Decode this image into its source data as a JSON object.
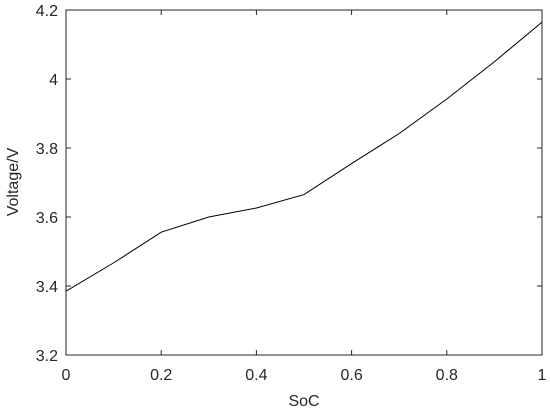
{
  "chart_data": {
    "type": "line",
    "x_label": "SoC",
    "y_label": "Voltage/V",
    "x": [
      0,
      0.1,
      0.2,
      0.3,
      0.4,
      0.5,
      0.6,
      0.7,
      0.8,
      0.9,
      1.0
    ],
    "series": [
      {
        "color": "#000000",
        "values": [
          3.385,
          3.467,
          3.556,
          3.6,
          3.626,
          3.665,
          3.755,
          3.842,
          3.942,
          4.05,
          4.165
        ]
      }
    ],
    "xlim": [
      0,
      1
    ],
    "xticks": [
      0,
      0.2,
      0.4,
      0.6,
      0.8,
      1
    ],
    "ylim": [
      3.2,
      4.2
    ],
    "yticks": [
      3.2,
      3.4,
      3.6,
      3.8,
      4,
      4.2
    ],
    "grid": false
  }
}
